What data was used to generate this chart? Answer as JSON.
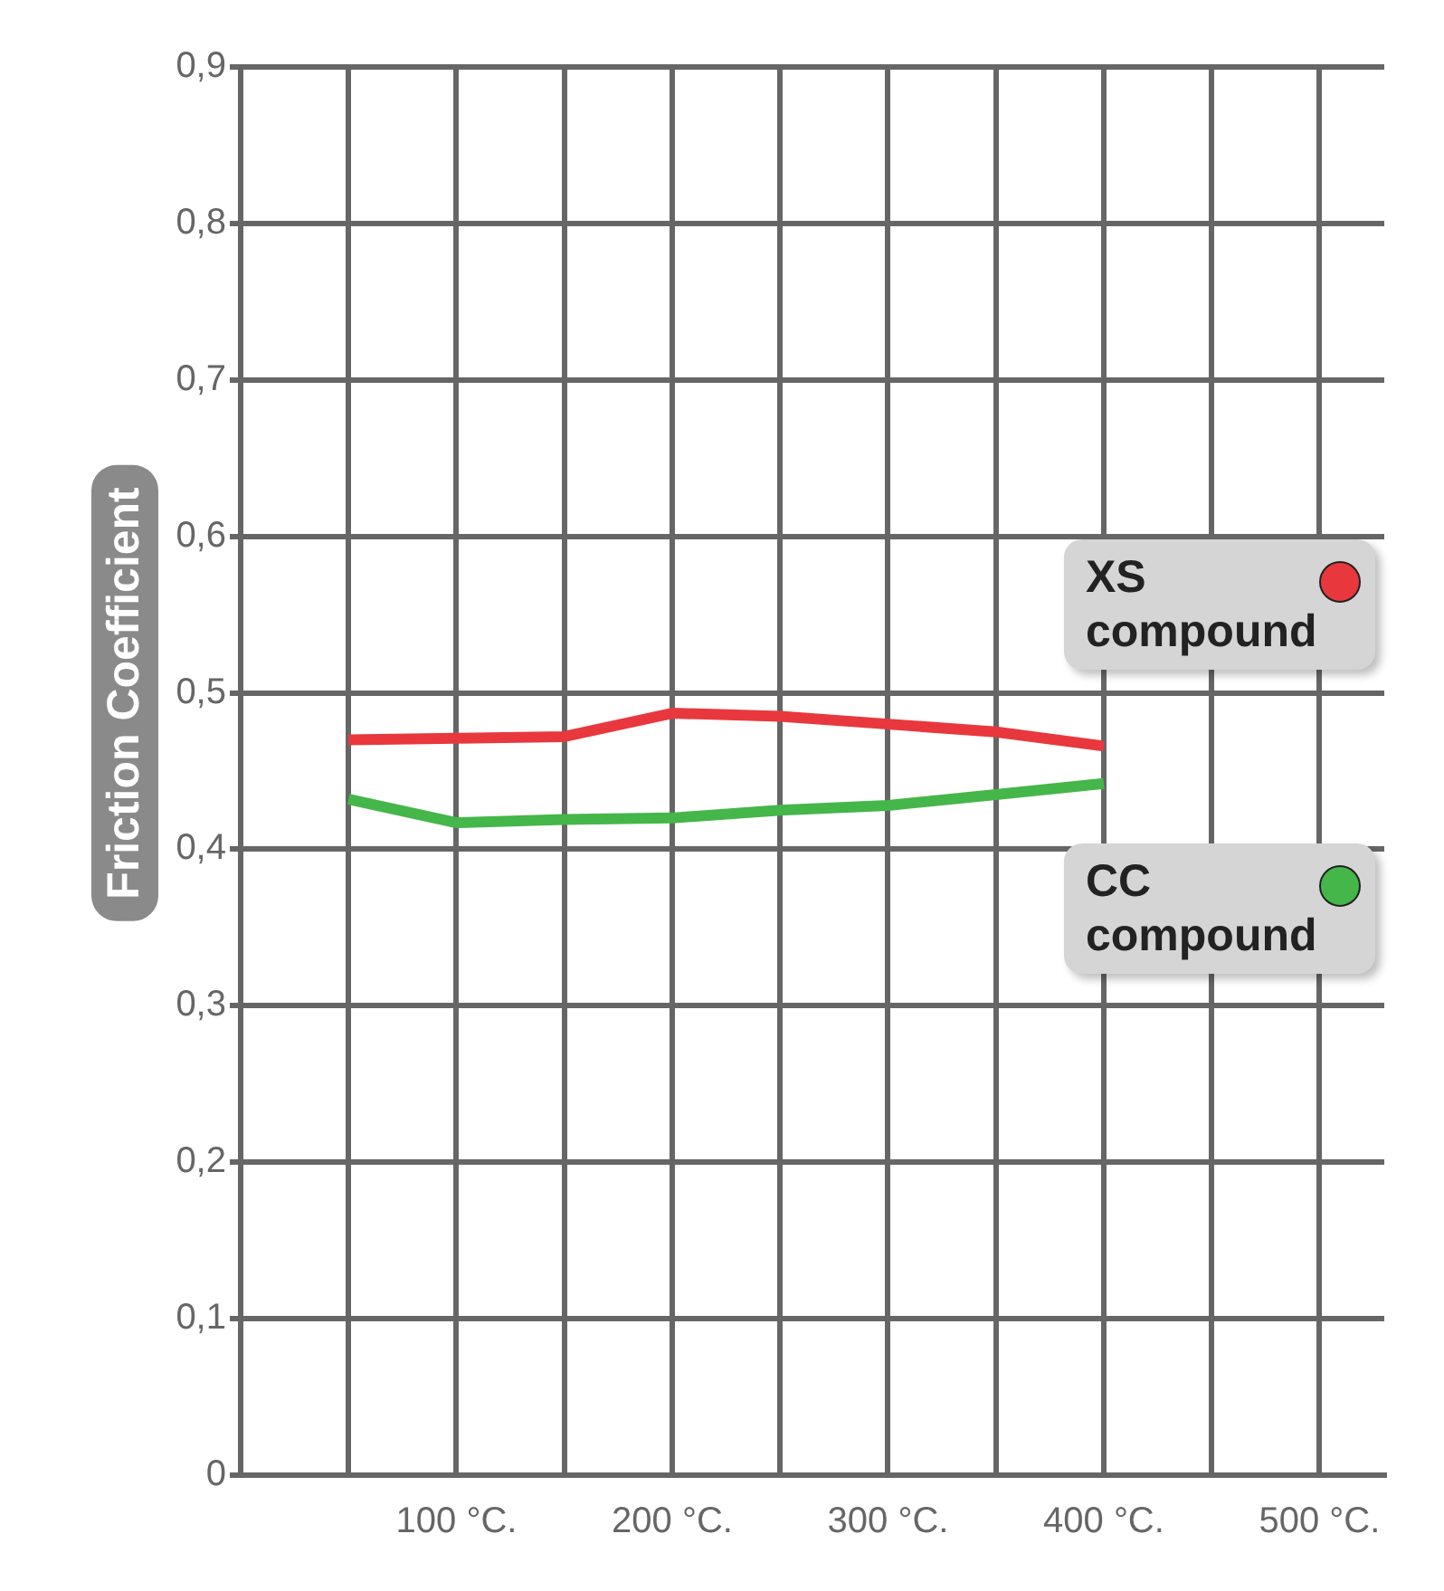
{
  "chart_data": {
    "type": "line",
    "ylabel": "Friction Coefficient",
    "x": [
      50,
      100,
      150,
      200,
      250,
      300,
      350,
      400
    ],
    "series": [
      {
        "name": "XS compound",
        "color": "#e8383d",
        "values": [
          0.47,
          0.471,
          0.472,
          0.487,
          0.485,
          0.48,
          0.475,
          0.466
        ]
      },
      {
        "name": "CC compound",
        "color": "#45b649",
        "values": [
          0.432,
          0.417,
          0.419,
          0.42,
          0.425,
          0.428,
          0.435,
          0.442
        ]
      }
    ],
    "xlim": [
      0,
      530
    ],
    "xticks": [
      {
        "value": 0,
        "label": null
      },
      {
        "value": 50,
        "label": null
      },
      {
        "value": 100,
        "label": "100 °C."
      },
      {
        "value": 150,
        "label": null
      },
      {
        "value": 200,
        "label": "200 °C."
      },
      {
        "value": 250,
        "label": null
      },
      {
        "value": 300,
        "label": "300 °C."
      },
      {
        "value": 350,
        "label": null
      },
      {
        "value": 400,
        "label": "400 °C."
      },
      {
        "value": 450,
        "label": null
      },
      {
        "value": 500,
        "label": "500 °C."
      }
    ],
    "ylim": [
      0,
      0.9
    ],
    "yticks": [
      0,
      {
        "value": 0.1,
        "label": "0,1"
      },
      {
        "value": 0.2,
        "label": "0,2"
      },
      {
        "value": 0.3,
        "label": "0,3"
      },
      {
        "value": 0.4,
        "label": "0,4"
      },
      {
        "value": 0.5,
        "label": "0,5"
      },
      {
        "value": 0.6,
        "label": "0,6"
      },
      {
        "value": 0.7,
        "label": "0,7"
      },
      {
        "value": 0.8,
        "label": "0,8"
      },
      {
        "value": 0.9,
        "label": "0,9"
      }
    ],
    "grid": true,
    "legend": "right",
    "marker": "none",
    "line_style": "solid"
  }
}
